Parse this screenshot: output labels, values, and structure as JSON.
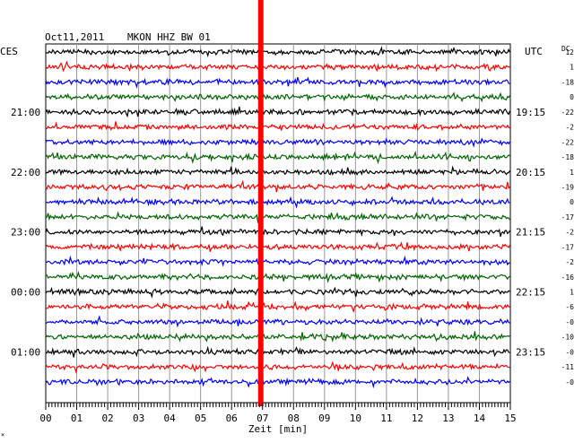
{
  "header": {
    "date": "Oct11,2011",
    "station": "MKON HHZ BW 01",
    "left_zone": "CES",
    "right_zone": "UTC",
    "dc_label": "DC",
    "corner_mark": "×"
  },
  "chart_data": {
    "type": "line",
    "title": "Oct11,2011   MKON HHZ BW 01",
    "xlabel": "Zeit [min]",
    "xlim": [
      0,
      15
    ],
    "x_ticks": [
      "00",
      "01",
      "02",
      "03",
      "04",
      "05",
      "06",
      "07",
      "08",
      "09",
      "10",
      "11",
      "12",
      "13",
      "14",
      "15"
    ],
    "rows_per_hour": 4,
    "grid": true,
    "left_hour_labels": [
      "21:00",
      "22:00",
      "23:00",
      "00:00",
      "01:00"
    ],
    "right_hour_labels": [
      "19:15",
      "20:15",
      "21:15",
      "22:15",
      "23:15"
    ],
    "dc_offsets": [
      "12",
      "1",
      "-18",
      "0",
      "-22",
      "-2",
      "-22",
      "-18",
      "1",
      "-19",
      "0",
      "-17",
      "-2",
      "-17",
      "-2",
      "-16",
      "1",
      "-6",
      "-0",
      "-10",
      "-0",
      "-11",
      "-0"
    ],
    "trace_colors": [
      "#000000",
      "#ff0000",
      "#0000ff",
      "#006400"
    ],
    "marker": {
      "minute": 7.0,
      "color": "#ff0000"
    },
    "series": [
      {
        "values": [
          12
        ]
      },
      {
        "values": [
          1
        ]
      },
      {
        "values": [
          -18
        ]
      },
      {
        "values": [
          0
        ]
      },
      {
        "values": [
          -22
        ]
      },
      {
        "values": [
          -2
        ]
      },
      {
        "values": [
          -22
        ]
      },
      {
        "values": [
          -18
        ]
      },
      {
        "values": [
          1
        ]
      },
      {
        "values": [
          -19
        ]
      },
      {
        "values": [
          0
        ]
      },
      {
        "values": [
          -17
        ]
      },
      {
        "values": [
          -2
        ]
      },
      {
        "values": [
          -17
        ]
      },
      {
        "values": [
          -2
        ]
      },
      {
        "values": [
          -16
        ]
      },
      {
        "values": [
          1
        ]
      },
      {
        "values": [
          -6
        ]
      },
      {
        "values": [
          0
        ]
      },
      {
        "values": [
          -10
        ]
      },
      {
        "values": [
          0
        ]
      },
      {
        "values": [
          -11
        ]
      },
      {
        "values": [
          0
        ]
      }
    ]
  }
}
